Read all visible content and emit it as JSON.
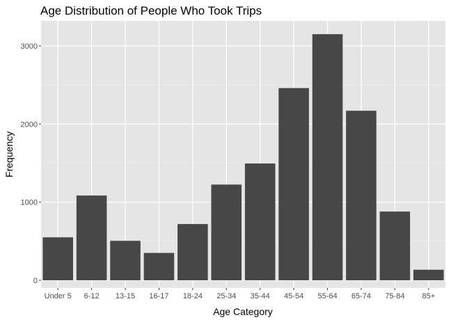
{
  "chart_data": {
    "type": "bar",
    "title": "Age Distribution of People Who Took Trips",
    "xlabel": "Age Category",
    "ylabel": "Frequency",
    "categories": [
      "Under 5",
      "6-12",
      "13-15",
      "16-17",
      "18-24",
      "25-34",
      "35-44",
      "45-54",
      "55-64",
      "65-74",
      "75-84",
      "85+"
    ],
    "values": [
      550,
      1085,
      505,
      350,
      720,
      1225,
      1495,
      2460,
      3150,
      2170,
      880,
      135
    ],
    "ylim": [
      0,
      3300
    ],
    "yticks": [
      0,
      1000,
      2000,
      3000
    ],
    "ytick_labels": [
      "0",
      "1000",
      "2000",
      "3000"
    ],
    "grid": true,
    "legend": "none",
    "colors": {
      "bar": "#474747",
      "panel": "#e5e5e5",
      "grid_major": "#ffffff",
      "grid_minor": "#f2f2f2",
      "tick_text": "#4d4d4d"
    }
  }
}
